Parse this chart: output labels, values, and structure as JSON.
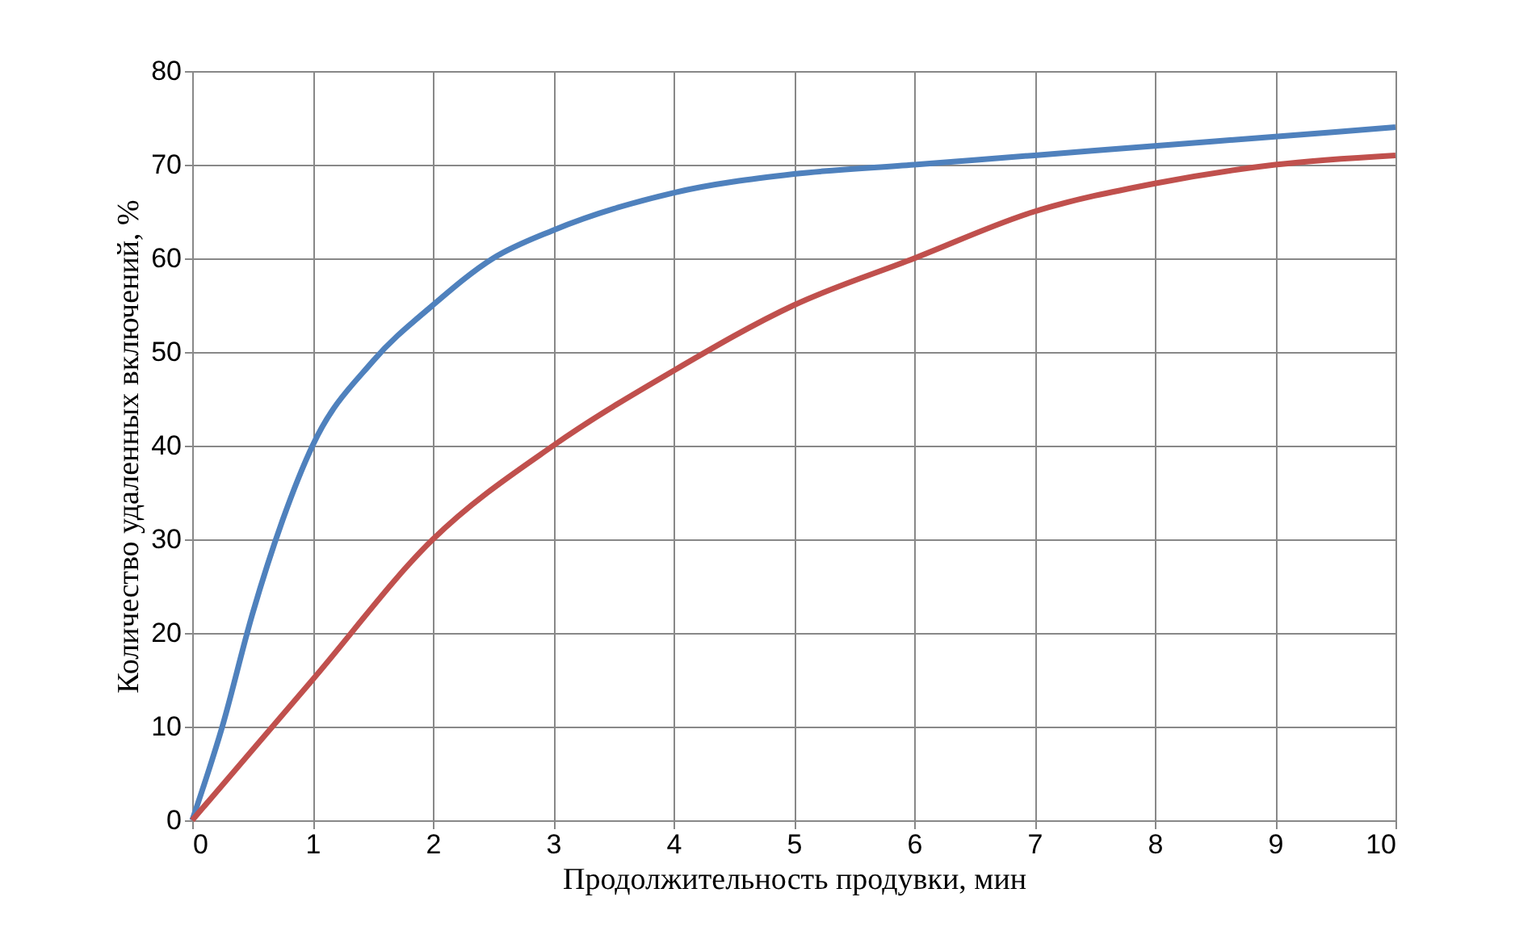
{
  "chart_data": {
    "type": "line",
    "xlabel": "Продолжительность продувки, мин",
    "ylabel": "Количество удаленных включений, %",
    "xlim": [
      0,
      10
    ],
    "xticks": [
      0,
      1,
      2,
      3,
      4,
      5,
      6,
      7,
      8,
      9,
      10
    ],
    "ylim": [
      0,
      80
    ],
    "yticks": [
      0,
      10,
      20,
      30,
      40,
      50,
      60,
      70,
      80
    ],
    "grid": true,
    "marker": "none",
    "line_style": "solid",
    "series": [
      {
        "color": "#4f81bd",
        "x": [
          0,
          0.25,
          0.5,
          0.75,
          1,
          1.5,
          2,
          2.5,
          3,
          4,
          5,
          6,
          7,
          8,
          9,
          10
        ],
        "values": [
          0,
          10,
          22,
          32,
          40,
          49,
          55,
          60,
          63,
          67,
          69,
          70,
          71,
          72,
          73,
          74
        ]
      },
      {
        "color": "#c0504d",
        "x": [
          0,
          1,
          2,
          3,
          4,
          5,
          6,
          7,
          8,
          9,
          10
        ],
        "values": [
          0,
          15,
          30,
          40,
          48,
          55,
          60,
          65,
          68,
          70,
          71
        ]
      }
    ]
  }
}
